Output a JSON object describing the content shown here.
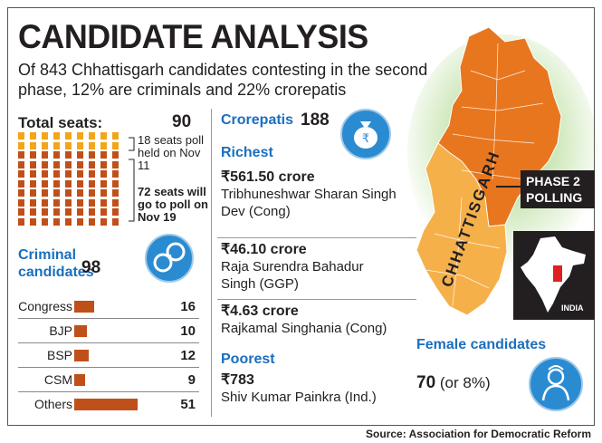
{
  "header": {
    "title": "CANDIDATE ANALYSIS",
    "subtitle": "Of 843 Chhattisgarh candidates contesting in the second phase, 12% are criminals and 22% crorepatis"
  },
  "seats": {
    "label": "Total seats:",
    "value": "90",
    "note1": "18 seats poll held on Nov 11",
    "note2": "72 seats will go to poll on Nov 19",
    "first_phase_count": 18,
    "second_phase_count": 72,
    "colors": {
      "first": "#f3a51b",
      "second": "#c0501a"
    }
  },
  "criminal": {
    "label_line1": "Criminal",
    "label_line2": "candidates",
    "value": "98",
    "parties": [
      {
        "name": "Congress",
        "value": 16
      },
      {
        "name": "BJP",
        "value": 10
      },
      {
        "name": "BSP",
        "value": 12
      },
      {
        "name": "CSM",
        "value": 9
      },
      {
        "name": "Others",
        "value": 51
      }
    ]
  },
  "crorepatis": {
    "label": "Crorepatis",
    "value": "188"
  },
  "richest": {
    "label": "Richest",
    "items": [
      {
        "amount": "₹561.50 crore",
        "name": "Tribhuneshwar Sharan Singh Dev  (Cong)"
      },
      {
        "amount": "₹46.10 crore",
        "name": "Raja Surendra Bahadur Singh (GGP)"
      },
      {
        "amount": "₹4.63 crore",
        "name": "Rajkamal Singhania (Cong)"
      }
    ]
  },
  "poorest": {
    "label": "Poorest",
    "amount": "₹783",
    "name": "Shiv Kumar Painkra (Ind.)"
  },
  "map": {
    "state_label": "CHHATTISGARH",
    "phase_line1": "PHASE 2",
    "phase_line2": "POLLING",
    "inset_label": "INDIA",
    "colors": {
      "phase2": "#e8761e",
      "phase1": "#f5b04a",
      "glow": "#7bc043"
    }
  },
  "female": {
    "label": "Female candidates",
    "value": "70",
    "pct": "(or 8%)"
  },
  "source": "Source: Association for Democratic Reform"
}
